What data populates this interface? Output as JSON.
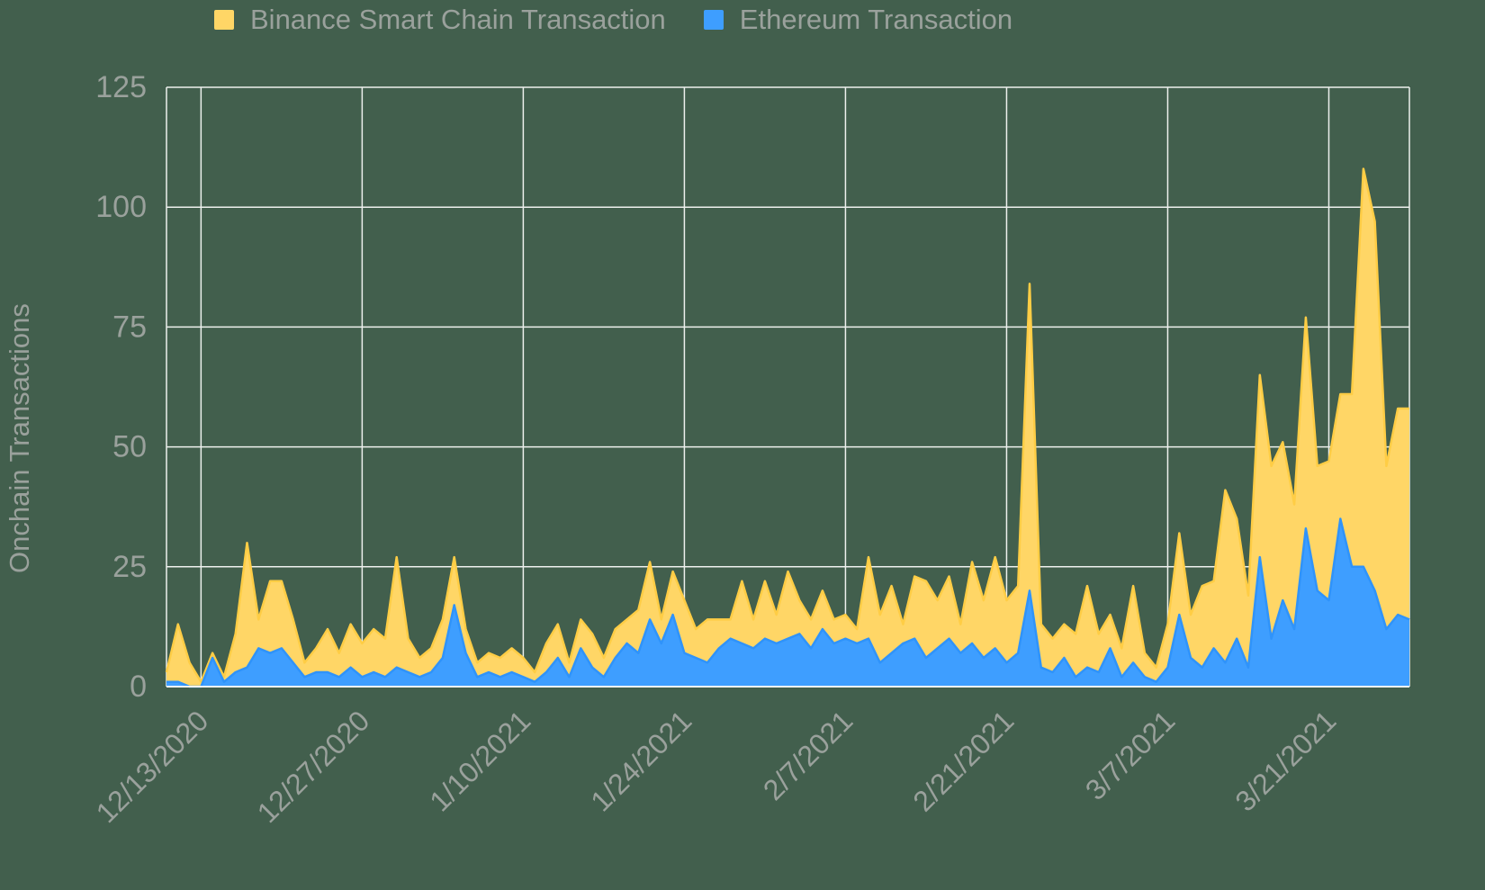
{
  "chart": {
    "y_axis_title": "Onchain Transactions",
    "legend": [
      {
        "label": "Binance Smart Chain Transaction",
        "color": "#FFD666"
      },
      {
        "label": "Ethereum Transaction",
        "color": "#3E9EFF"
      }
    ],
    "text_color": "#9aa19c",
    "gridline_color": "#edf0ed",
    "background_color": "#425f4d"
  },
  "chart_data": {
    "type": "area",
    "stacked": true,
    "legend_position": "top",
    "grid": true,
    "ylabel": "Onchain Transactions",
    "xlabel": "",
    "ylim": [
      0,
      125
    ],
    "y_ticks": [
      0,
      25,
      50,
      75,
      100,
      125
    ],
    "x_tick_labels": [
      "12/13/2020",
      "12/27/2020",
      "1/10/2021",
      "1/24/2021",
      "2/7/2021",
      "2/21/2021",
      "3/7/2021",
      "3/21/2021"
    ],
    "x_tick_indices": [
      3,
      17,
      31,
      45,
      59,
      73,
      87,
      101
    ],
    "x": [
      "12/10/2020",
      "12/11/2020",
      "12/12/2020",
      "12/13/2020",
      "12/14/2020",
      "12/15/2020",
      "12/16/2020",
      "12/17/2020",
      "12/18/2020",
      "12/19/2020",
      "12/20/2020",
      "12/21/2020",
      "12/22/2020",
      "12/23/2020",
      "12/24/2020",
      "12/25/2020",
      "12/26/2020",
      "12/27/2020",
      "12/28/2020",
      "12/29/2020",
      "12/30/2020",
      "12/31/2020",
      "1/1/2021",
      "1/2/2021",
      "1/3/2021",
      "1/4/2021",
      "1/5/2021",
      "1/6/2021",
      "1/7/2021",
      "1/8/2021",
      "1/9/2021",
      "1/10/2021",
      "1/11/2021",
      "1/12/2021",
      "1/13/2021",
      "1/14/2021",
      "1/15/2021",
      "1/16/2021",
      "1/17/2021",
      "1/18/2021",
      "1/19/2021",
      "1/20/2021",
      "1/21/2021",
      "1/22/2021",
      "1/23/2021",
      "1/24/2021",
      "1/25/2021",
      "1/26/2021",
      "1/27/2021",
      "1/28/2021",
      "1/29/2021",
      "1/30/2021",
      "1/31/2021",
      "2/1/2021",
      "2/2/2021",
      "2/3/2021",
      "2/4/2021",
      "2/5/2021",
      "2/6/2021",
      "2/7/2021",
      "2/8/2021",
      "2/9/2021",
      "2/10/2021",
      "2/11/2021",
      "2/12/2021",
      "2/13/2021",
      "2/14/2021",
      "2/15/2021",
      "2/16/2021",
      "2/17/2021",
      "2/18/2021",
      "2/19/2021",
      "2/20/2021",
      "2/21/2021",
      "2/22/2021",
      "2/23/2021",
      "2/24/2021",
      "2/25/2021",
      "2/26/2021",
      "2/27/2021",
      "2/28/2021",
      "3/1/2021",
      "3/2/2021",
      "3/3/2021",
      "3/4/2021",
      "3/5/2021",
      "3/6/2021",
      "3/7/2021",
      "3/8/2021",
      "3/9/2021",
      "3/10/2021",
      "3/11/2021",
      "3/12/2021",
      "3/13/2021",
      "3/14/2021",
      "3/15/2021",
      "3/16/2021",
      "3/17/2021",
      "3/18/2021",
      "3/19/2021",
      "3/20/2021",
      "3/21/2021",
      "3/22/2021",
      "3/23/2021",
      "3/24/2021",
      "3/25/2021",
      "3/26/2021",
      "3/27/2021",
      "3/28/2021"
    ],
    "series": [
      {
        "name": "Ethereum Transaction",
        "color": "#3E9EFF",
        "line_color": "#2F93FA",
        "values": [
          1,
          1,
          0,
          0,
          6,
          1,
          3,
          4,
          8,
          7,
          8,
          5,
          2,
          3,
          3,
          2,
          4,
          2,
          3,
          2,
          4,
          3,
          2,
          3,
          6,
          17,
          7,
          2,
          3,
          2,
          3,
          2,
          1,
          3,
          6,
          2,
          8,
          4,
          2,
          6,
          9,
          7,
          14,
          9,
          15,
          7,
          6,
          5,
          8,
          10,
          9,
          8,
          10,
          9,
          10,
          11,
          8,
          12,
          9,
          10,
          9,
          10,
          5,
          7,
          9,
          10,
          6,
          8,
          10,
          7,
          9,
          6,
          8,
          5,
          7,
          20,
          4,
          3,
          6,
          2,
          4,
          3,
          8,
          2,
          5,
          2,
          1,
          4,
          15,
          6,
          4,
          8,
          5,
          10,
          4,
          27,
          10,
          18,
          12,
          33,
          20,
          18,
          35,
          25,
          25,
          20,
          12,
          15,
          14
        ]
      },
      {
        "name": "Binance Smart Chain Transaction",
        "color": "#FFD666",
        "line_color": "#FFCD45",
        "values": [
          2,
          12,
          5,
          1,
          1,
          1,
          8,
          26,
          6,
          15,
          14,
          9,
          3,
          5,
          9,
          5,
          9,
          7,
          9,
          8,
          23,
          7,
          4,
          5,
          8,
          10,
          5,
          3,
          4,
          4,
          5,
          4,
          2,
          6,
          7,
          3,
          6,
          7,
          4,
          6,
          5,
          9,
          12,
          5,
          9,
          11,
          6,
          9,
          6,
          4,
          13,
          6,
          12,
          6,
          14,
          7,
          6,
          8,
          5,
          5,
          3,
          17,
          10,
          14,
          4,
          13,
          16,
          10,
          13,
          6,
          17,
          12,
          19,
          13,
          14,
          64,
          9,
          7,
          7,
          9,
          17,
          8,
          7,
          6,
          16,
          5,
          3,
          9,
          17,
          9,
          17,
          14,
          36,
          25,
          15,
          38,
          36,
          33,
          26,
          44,
          26,
          29,
          26,
          36,
          83,
          77,
          34,
          43,
          44
        ]
      }
    ]
  }
}
